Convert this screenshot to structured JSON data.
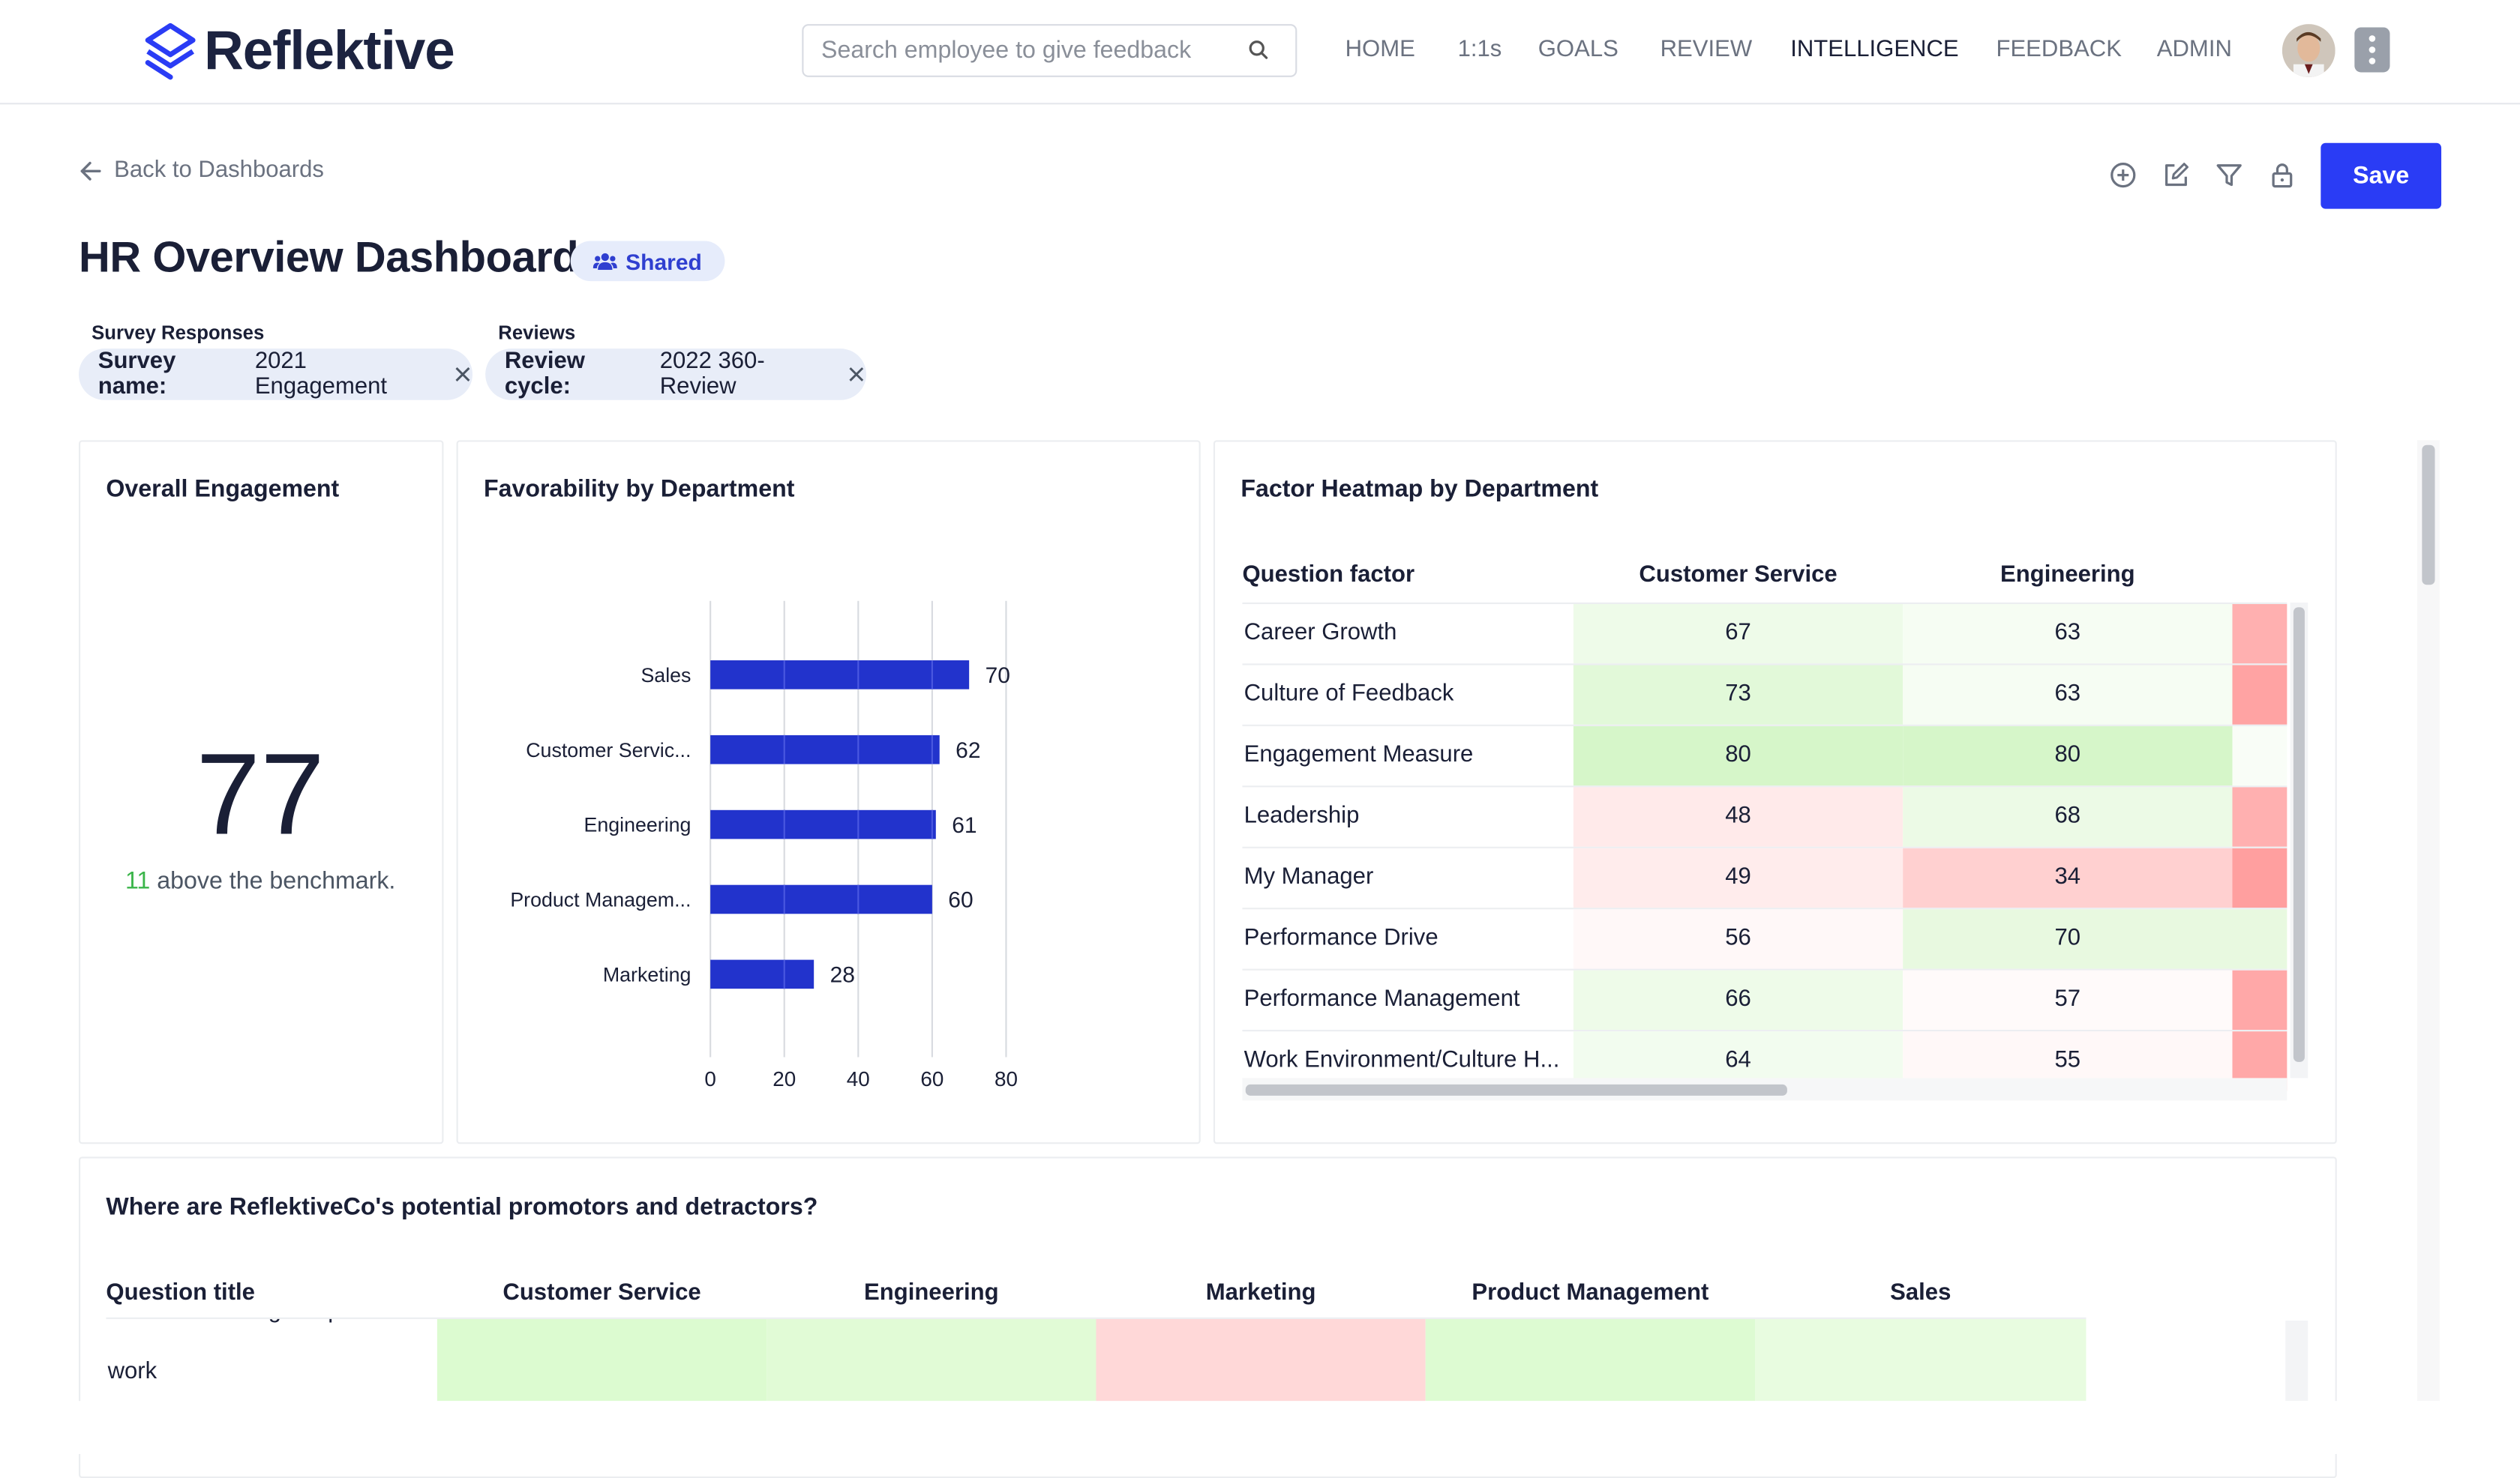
{
  "app": {
    "brand": "Reflektive",
    "search_placeholder": "Search employee to give feedback",
    "nav": [
      "HOME",
      "1:1s",
      "GOALS",
      "REVIEW",
      "INTELLIGENCE",
      "FEEDBACK",
      "ADMIN"
    ],
    "active_nav": "INTELLIGENCE",
    "accent_color": "#2a3cf5"
  },
  "toolbar": {
    "back_label": "Back to Dashboards",
    "save_label": "Save",
    "icons": [
      "add-circle-icon",
      "edit-icon",
      "filter-icon",
      "lock-icon"
    ]
  },
  "dashboard": {
    "title": "HR Overview Dashboard",
    "shared_label": "Shared"
  },
  "filters": [
    {
      "group": "Survey Responses",
      "key": "Survey name:",
      "value": "2021 Engagement"
    },
    {
      "group": "Reviews",
      "key": "Review cycle:",
      "value": "2022 360-Review"
    }
  ],
  "engagement": {
    "title": "Overall Engagement",
    "score": "77",
    "delta": "11",
    "benchmark_text": "above the benchmark."
  },
  "favorability": {
    "title": "Favorability by Department"
  },
  "chart_data": {
    "type": "bar",
    "orientation": "horizontal",
    "title": "Favorability by Department",
    "categories": [
      "Sales",
      "Customer Servic...",
      "Engineering",
      "Product Managem...",
      "Marketing"
    ],
    "values": [
      70,
      62,
      61,
      60,
      28
    ],
    "xlim": [
      0,
      80
    ],
    "xticks": [
      0,
      20,
      40,
      60,
      80
    ],
    "bar_color": "#2233cc",
    "grid": true
  },
  "heatmap": {
    "title": "Factor Heatmap by Department",
    "columns": [
      "Question factor",
      "Customer Service",
      "Engineering"
    ],
    "rows": [
      {
        "factor": "Career Growth",
        "values": [
          67,
          63
        ],
        "colors": [
          "#eefbe9",
          "#f6fdf3",
          "#ffb0b0"
        ]
      },
      {
        "factor": "Culture of Feedback",
        "values": [
          73,
          63
        ],
        "colors": [
          "#e2f9d9",
          "#f6fdf3",
          "#ffa3a3"
        ]
      },
      {
        "factor": "Engagement Measure",
        "values": [
          80,
          80
        ],
        "colors": [
          "#d6f6c9",
          "#d6f6c9",
          "#f9fdf7"
        ]
      },
      {
        "factor": "Leadership",
        "values": [
          48,
          68
        ],
        "colors": [
          "#ffeaea",
          "#ecfae6",
          "#ffb0b0"
        ]
      },
      {
        "factor": "My Manager",
        "values": [
          49,
          34
        ],
        "colors": [
          "#ffecec",
          "#ffd0d0",
          "#ff9f9f"
        ]
      },
      {
        "factor": "Performance Drive",
        "values": [
          56,
          70
        ],
        "colors": [
          "#fff8f8",
          "#e8f9e0",
          "#e8f9e0"
        ]
      },
      {
        "factor": "Performance Management",
        "values": [
          66,
          57
        ],
        "colors": [
          "#eefbe9",
          "#fffafa",
          "#ffa8a8"
        ]
      },
      {
        "factor": "Work Environment/Culture H...",
        "values": [
          64,
          55
        ],
        "colors": [
          "#f2fcef",
          "#fff8f8",
          "#ffa8a8"
        ]
      }
    ]
  },
  "promotors": {
    "title": "Where are ReflektiveCo's potential promotors and detractors?",
    "columns": [
      "Question title",
      "Customer Service",
      "Engineering",
      "Marketing",
      "Product Management",
      "Sales"
    ],
    "partial_row_text": "to a friend as a great place to",
    "row_text": "work",
    "row_colors": [
      "#dcfbd0",
      "#e1fbd6",
      "#ffd8d8",
      "#ddfbd2",
      "#e8fce0"
    ]
  }
}
